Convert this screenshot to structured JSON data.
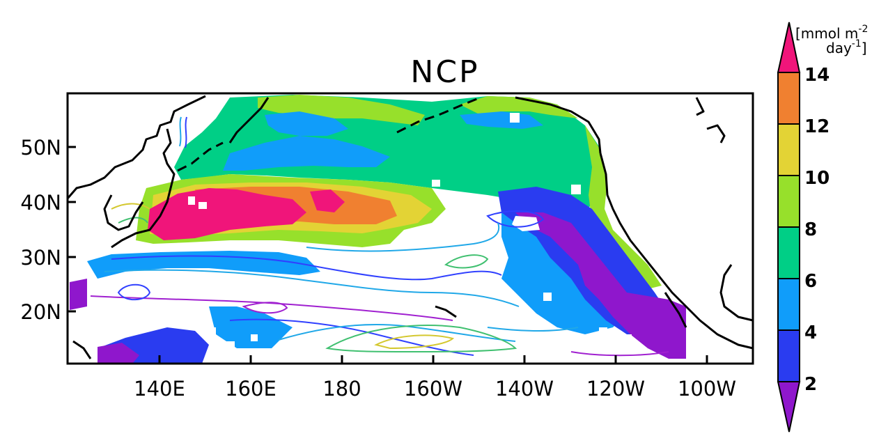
{
  "title": "NCP",
  "units": {
    "line1": "[mmol m",
    "line1_sup": "-2",
    "line2": "day",
    "line2_sup": "-1",
    "line2_end": "]"
  },
  "x_ticks": [
    "140E",
    "160E",
    "180",
    "160W",
    "140W",
    "120W",
    "100W"
  ],
  "y_ticks": [
    "50N",
    "40N",
    "30N",
    "20N"
  ],
  "colorbar": {
    "labels": [
      "2",
      "4",
      "6",
      "8",
      "10",
      "12",
      "14"
    ],
    "colors": {
      "below_2": "#8f17cc",
      "2_4": "#2a3cf0",
      "4_6": "#109dfa",
      "6_8": "#00cf86",
      "8_10": "#97e02b",
      "10_12": "#e3d335",
      "12_14": "#f08030",
      "above_14": "#f0157a"
    }
  },
  "map": {
    "colors": {
      "coast": "#000000",
      "contour_purple": "#a020d0",
      "contour_blue": "#3040ff",
      "contour_cyan": "#20a8e8",
      "contour_green": "#40c070",
      "contour_yellow": "#d4c830"
    }
  }
}
